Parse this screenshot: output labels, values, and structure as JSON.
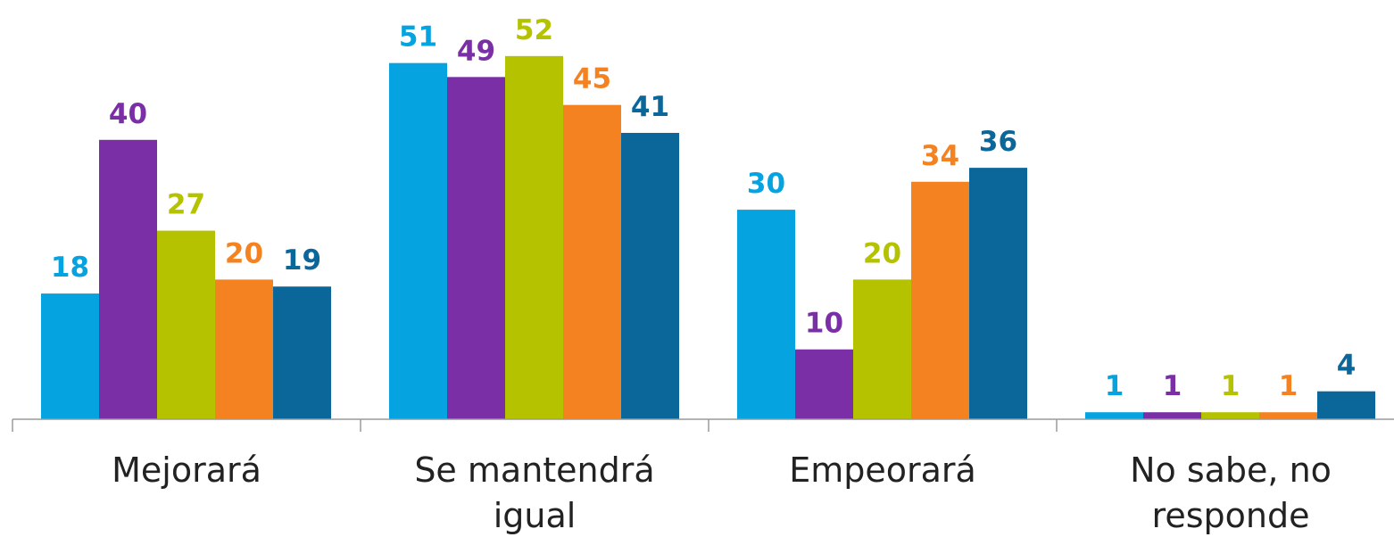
{
  "chart_data": {
    "type": "bar",
    "title": "",
    "xlabel": "",
    "ylabel": "",
    "ylim": [
      0,
      56
    ],
    "grid": false,
    "legend": "none",
    "categories": [
      [
        "Mejorará"
      ],
      [
        "Se mantendrá",
        "igual"
      ],
      [
        "Empeorará"
      ],
      [
        "No sabe, no",
        "responde"
      ]
    ],
    "series": [
      {
        "color": "#05a3e0",
        "values": [
          18,
          51,
          30,
          1
        ]
      },
      {
        "color": "#7b2fa6",
        "values": [
          40,
          49,
          10,
          1
        ]
      },
      {
        "color": "#b5c200",
        "values": [
          27,
          52,
          20,
          1
        ]
      },
      {
        "color": "#f58220",
        "values": [
          20,
          45,
          34,
          1
        ]
      },
      {
        "color": "#0b6699",
        "values": [
          19,
          41,
          36,
          4
        ]
      }
    ]
  }
}
